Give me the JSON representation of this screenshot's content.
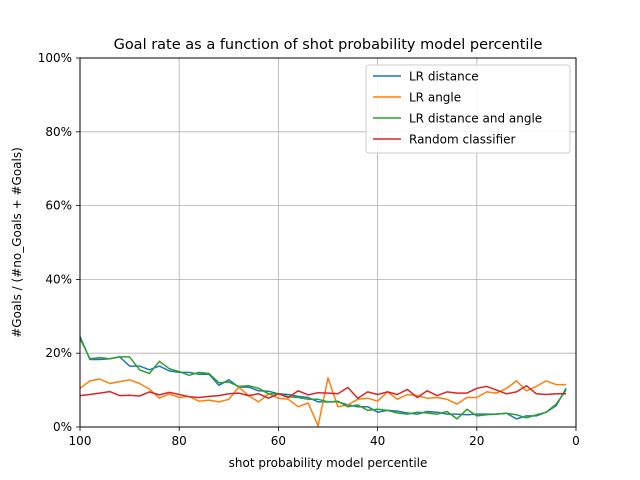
{
  "chart_data": {
    "type": "line",
    "title": "Goal rate as a function of shot probability model percentile",
    "xlabel": "shot probability model percentile",
    "ylabel": "#Goals / (#no_Goals + #Goals)",
    "xlim": [
      100,
      0
    ],
    "ylim": [
      0,
      1
    ],
    "x_inverted": true,
    "grid": true,
    "legend_position": "top-right",
    "x_ticks": [
      100,
      80,
      60,
      40,
      20,
      0
    ],
    "x_tick_labels": [
      "100",
      "80",
      "60",
      "40",
      "20",
      "0"
    ],
    "y_ticks": [
      0,
      0.2,
      0.4,
      0.6,
      0.8,
      1.0
    ],
    "y_tick_labels": [
      "0%",
      "20%",
      "40%",
      "60%",
      "80%",
      "100%"
    ],
    "x": [
      100,
      98,
      96,
      94,
      92,
      90,
      88,
      86,
      84,
      82,
      80,
      78,
      76,
      74,
      72,
      70,
      68,
      66,
      64,
      62,
      60,
      58,
      56,
      54,
      52,
      50,
      48,
      46,
      44,
      42,
      40,
      38,
      36,
      34,
      32,
      30,
      28,
      26,
      24,
      22,
      20,
      18,
      16,
      14,
      12,
      10,
      8,
      6,
      4,
      2
    ],
    "series": [
      {
        "name": "LR distance",
        "color": "#1f77b4",
        "values": [
          0.245,
          0.183,
          0.183,
          0.185,
          0.19,
          0.165,
          0.165,
          0.155,
          0.165,
          0.152,
          0.148,
          0.148,
          0.143,
          0.143,
          0.113,
          0.128,
          0.108,
          0.108,
          0.098,
          0.097,
          0.09,
          0.088,
          0.083,
          0.08,
          0.068,
          0.068,
          0.068,
          0.06,
          0.055,
          0.055,
          0.04,
          0.045,
          0.043,
          0.038,
          0.035,
          0.042,
          0.04,
          0.035,
          0.035,
          0.033,
          0.035,
          0.035,
          0.035,
          0.037,
          0.022,
          0.03,
          0.03,
          0.04,
          0.058,
          0.105
        ]
      },
      {
        "name": "LR angle",
        "color": "#ff7f0e",
        "values": [
          0.105,
          0.125,
          0.13,
          0.118,
          0.123,
          0.128,
          0.118,
          0.103,
          0.078,
          0.09,
          0.08,
          0.083,
          0.07,
          0.073,
          0.068,
          0.075,
          0.108,
          0.085,
          0.068,
          0.09,
          0.078,
          0.075,
          0.055,
          0.065,
          0.003,
          0.133,
          0.055,
          0.06,
          0.075,
          0.078,
          0.07,
          0.095,
          0.075,
          0.088,
          0.085,
          0.078,
          0.08,
          0.075,
          0.062,
          0.08,
          0.08,
          0.095,
          0.092,
          0.105,
          0.125,
          0.098,
          0.11,
          0.125,
          0.115,
          0.115
        ]
      },
      {
        "name": "LR distance and angle",
        "color": "#2ca02c",
        "values": [
          0.24,
          0.185,
          0.188,
          0.185,
          0.19,
          0.19,
          0.155,
          0.145,
          0.178,
          0.158,
          0.15,
          0.14,
          0.148,
          0.145,
          0.12,
          0.122,
          0.11,
          0.112,
          0.105,
          0.09,
          0.09,
          0.082,
          0.08,
          0.075,
          0.075,
          0.068,
          0.07,
          0.055,
          0.06,
          0.045,
          0.048,
          0.045,
          0.038,
          0.035,
          0.04,
          0.038,
          0.035,
          0.042,
          0.022,
          0.048,
          0.03,
          0.033,
          0.035,
          0.037,
          0.033,
          0.025,
          0.033,
          0.04,
          0.062,
          0.1
        ]
      },
      {
        "name": "Random classifier",
        "color": "#d62728",
        "values": [
          0.085,
          0.088,
          0.092,
          0.096,
          0.085,
          0.086,
          0.084,
          0.095,
          0.087,
          0.094,
          0.088,
          0.082,
          0.08,
          0.083,
          0.085,
          0.09,
          0.092,
          0.085,
          0.09,
          0.078,
          0.09,
          0.08,
          0.098,
          0.087,
          0.093,
          0.092,
          0.09,
          0.107,
          0.078,
          0.095,
          0.088,
          0.095,
          0.088,
          0.102,
          0.08,
          0.098,
          0.085,
          0.095,
          0.092,
          0.092,
          0.105,
          0.11,
          0.1,
          0.09,
          0.095,
          0.112,
          0.09,
          0.088,
          0.09,
          0.09
        ]
      }
    ]
  }
}
